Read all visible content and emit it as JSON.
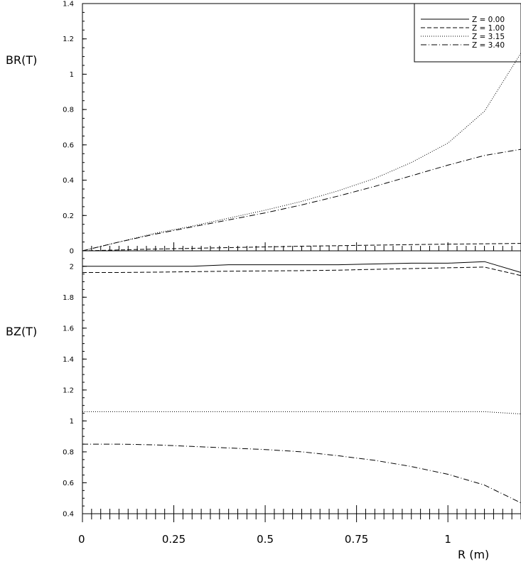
{
  "chart_data": {
    "type": "line",
    "x": [
      0,
      0.1,
      0.2,
      0.3,
      0.4,
      0.5,
      0.6,
      0.7,
      0.8,
      0.9,
      1.0,
      1.1,
      1.2
    ],
    "xlabel": "R (m)",
    "xlim": [
      0,
      1.2
    ],
    "xticks": [
      "0",
      "0.25",
      "0.5",
      "0.75",
      "1"
    ],
    "legend": {
      "placement": "top-right",
      "entries": [
        {
          "label": "Z = 0.00",
          "style": "solid"
        },
        {
          "label": "Z = 1.00",
          "style": "dashed"
        },
        {
          "label": "Z = 3.15",
          "style": "dotted"
        },
        {
          "label": "Z = 3.40",
          "style": "dashdot"
        }
      ]
    },
    "panels": [
      {
        "ylabel": "BR(T)",
        "ylim": [
          0,
          1.4
        ],
        "yticks": [
          "0",
          "0.2",
          "0.4",
          "0.6",
          "0.8",
          "1",
          "1.2",
          "1.4"
        ],
        "series": [
          {
            "name": "Z = 0.00",
            "style": "solid",
            "values": [
              0,
              0,
              0,
              0,
              0,
              0,
              0,
              0,
              0,
              0,
              0,
              0,
              0
            ]
          },
          {
            "name": "Z = 1.00",
            "style": "dashed",
            "values": [
              0,
              0.005,
              0.01,
              0.014,
              0.018,
              0.022,
              0.026,
              0.029,
              0.032,
              0.035,
              0.038,
              0.04,
              0.042
            ]
          },
          {
            "name": "Z = 3.15",
            "style": "dotted",
            "values": [
              0,
              0.05,
              0.1,
              0.14,
              0.185,
              0.23,
              0.28,
              0.34,
              0.41,
              0.5,
              0.61,
              0.79,
              1.12
            ]
          },
          {
            "name": "Z = 3.40",
            "style": "dashdot",
            "values": [
              0,
              0.05,
              0.095,
              0.135,
              0.175,
              0.215,
              0.26,
              0.31,
              0.365,
              0.425,
              0.485,
              0.54,
              0.575
            ]
          }
        ]
      },
      {
        "ylabel": "BZ(T)",
        "ylim": [
          0.4,
          2.1
        ],
        "yticks": [
          "0.4",
          "0.6",
          "0.8",
          "1",
          "1.2",
          "1.4",
          "1.6",
          "1.8",
          "2"
        ],
        "series": [
          {
            "name": "Z = 0.00",
            "style": "solid",
            "values": [
              2.0,
              2.0,
              2.0,
              2.0,
              2.01,
              2.01,
              2.01,
              2.01,
              2.015,
              2.02,
              2.02,
              2.03,
              1.96
            ]
          },
          {
            "name": "Z = 1.00",
            "style": "dashed",
            "values": [
              1.96,
              1.96,
              1.962,
              1.965,
              1.968,
              1.97,
              1.972,
              1.975,
              1.98,
              1.985,
              1.99,
              1.995,
              1.94
            ]
          },
          {
            "name": "Z = 3.15",
            "style": "dotted",
            "values": [
              1.06,
              1.06,
              1.06,
              1.06,
              1.06,
              1.06,
              1.06,
              1.06,
              1.06,
              1.06,
              1.06,
              1.06,
              1.045
            ]
          },
          {
            "name": "Z = 3.40",
            "style": "dashdot",
            "values": [
              0.85,
              0.85,
              0.845,
              0.835,
              0.825,
              0.815,
              0.8,
              0.775,
              0.745,
              0.705,
              0.655,
              0.585,
              0.47
            ]
          }
        ]
      }
    ]
  }
}
